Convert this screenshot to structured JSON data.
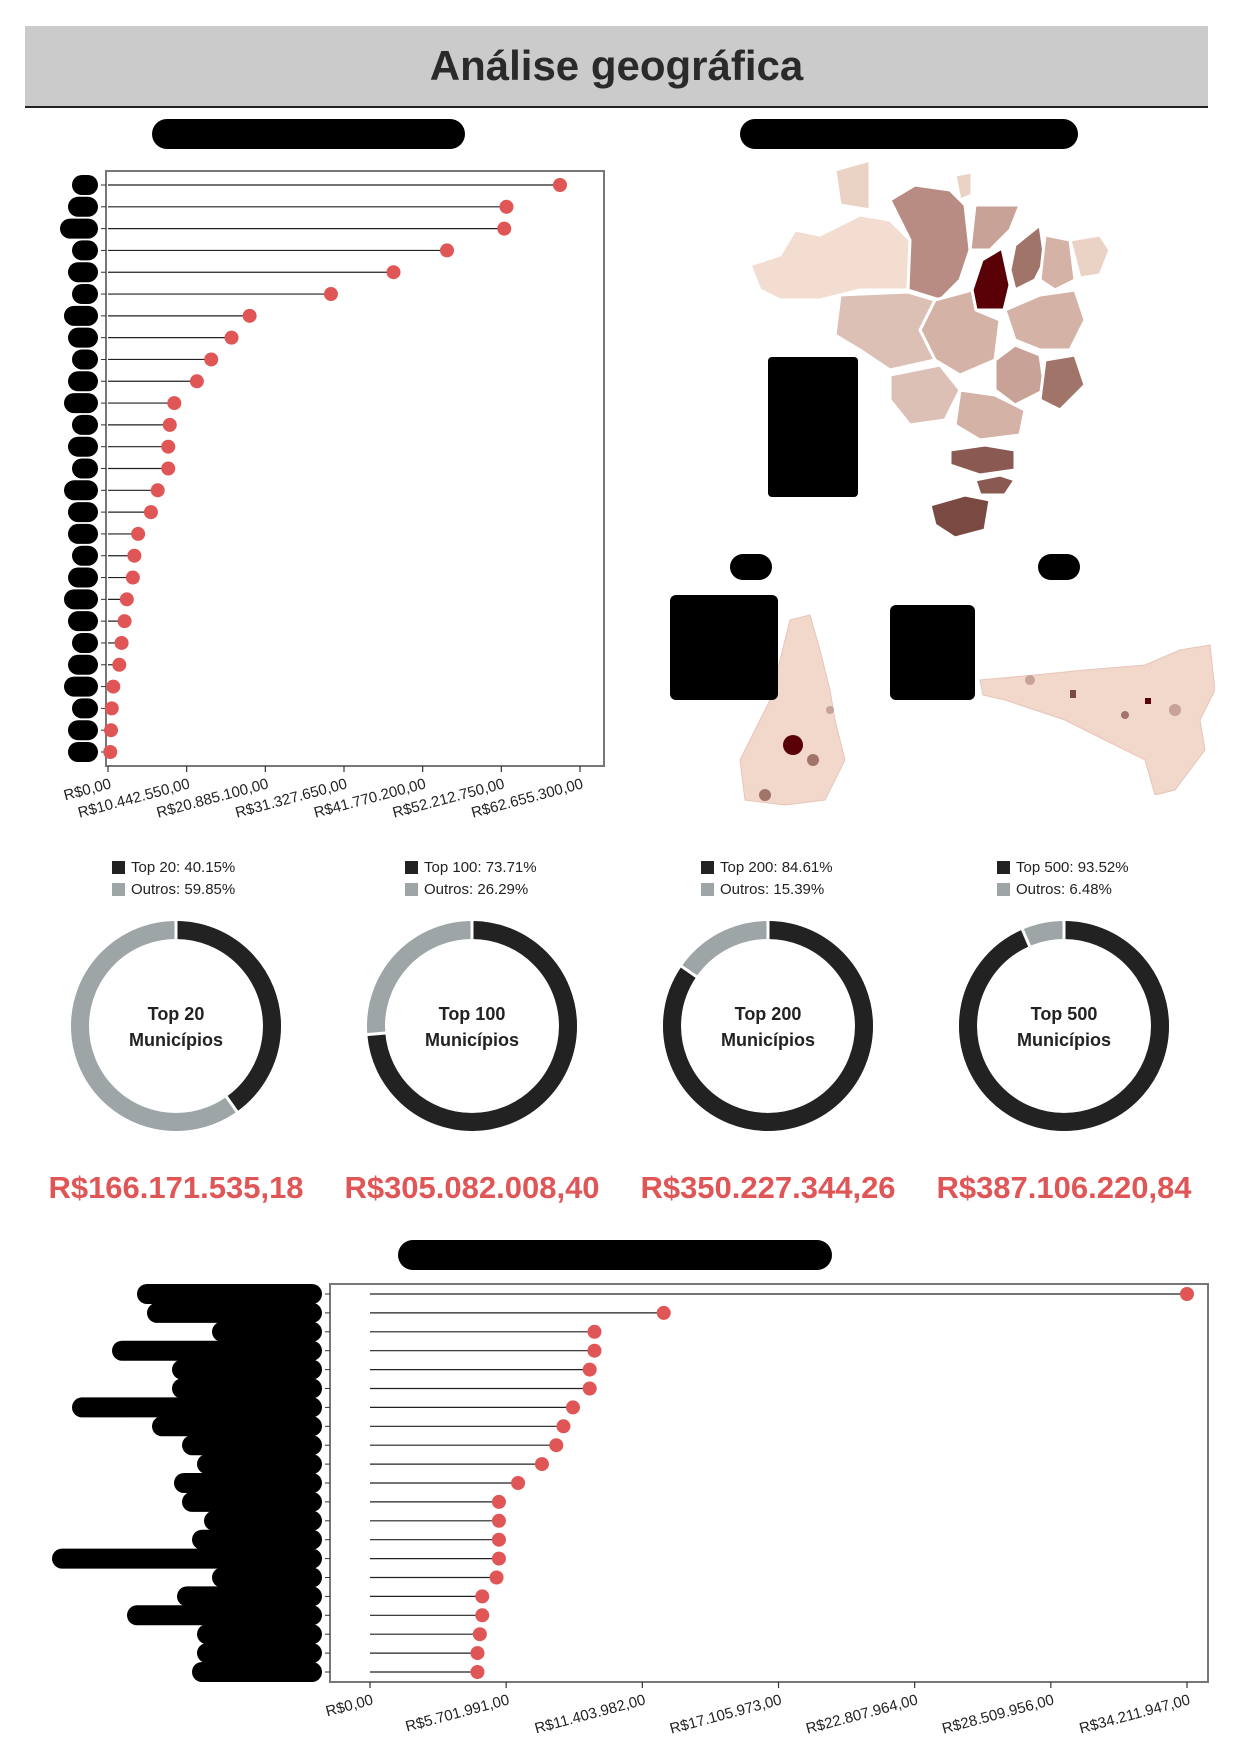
{
  "page": {
    "title": "Análise geográfica"
  },
  "colors": {
    "accent": "#e05555",
    "dark": "#222222",
    "grey": "#9ea5a7",
    "map_dark": "#5a0007",
    "map_light": "#f3ddd1"
  },
  "chart_data": [
    {
      "type": "lollipop",
      "orientation": "horizontal",
      "x_ticks": [
        "R$0,00",
        "R$10.442.550,00",
        "R$20.885.100,00",
        "R$31.327.650,00",
        "R$41.770.200,00",
        "R$52.212.750,00",
        "R$62.655.300,00"
      ],
      "xlim": [
        0,
        62655300
      ],
      "values": [
        60000000,
        52900000,
        52600000,
        45000000,
        37900000,
        29600000,
        18800000,
        16400000,
        13700000,
        11800000,
        8800000,
        8200000,
        8000000,
        8000000,
        6600000,
        5700000,
        4000000,
        3500000,
        3300000,
        2500000,
        2200000,
        1800000,
        1500000,
        700000,
        500000,
        400000,
        300000
      ]
    },
    {
      "type": "lollipop",
      "orientation": "horizontal",
      "x_ticks": [
        "R$0,00",
        "R$5.701.991,00",
        "R$11.403.982,00",
        "R$17.105.973,00",
        "R$22.807.964,00",
        "R$28.509.956,00",
        "R$34.211.947,00"
      ],
      "xlim": [
        0,
        34211947
      ],
      "values": [
        34211947,
        12300000,
        9400000,
        9400000,
        9200000,
        9200000,
        8500000,
        8100000,
        7800000,
        7200000,
        6200000,
        5400000,
        5400000,
        5400000,
        5400000,
        5300000,
        4700000,
        4700000,
        4600000,
        4500000,
        4500000
      ]
    },
    {
      "type": "pie",
      "donuts": [
        {
          "center_line1": "Top 20",
          "center_line2": "Municípios",
          "legend_top": "Top 20: 40.15%",
          "legend_rest": "Outros: 59.85%",
          "top_pct": 40.15,
          "total": "R$166.171.535,18"
        },
        {
          "center_line1": "Top 100",
          "center_line2": "Municípios",
          "legend_top": "Top 100: 73.71%",
          "legend_rest": "Outros: 26.29%",
          "top_pct": 73.71,
          "total": "R$305.082.008,40"
        },
        {
          "center_line1": "Top 200",
          "center_line2": "Municípios",
          "legend_top": "Top 200: 84.61%",
          "legend_rest": "Outros: 15.39%",
          "top_pct": 84.61,
          "total": "R$350.227.344,26"
        },
        {
          "center_line1": "Top 500",
          "center_line2": "Municípios",
          "legend_top": "Top 500: 93.52%",
          "legend_rest": "Outros: 6.48%",
          "top_pct": 93.52,
          "total": "R$387.106.220,84"
        }
      ]
    }
  ]
}
